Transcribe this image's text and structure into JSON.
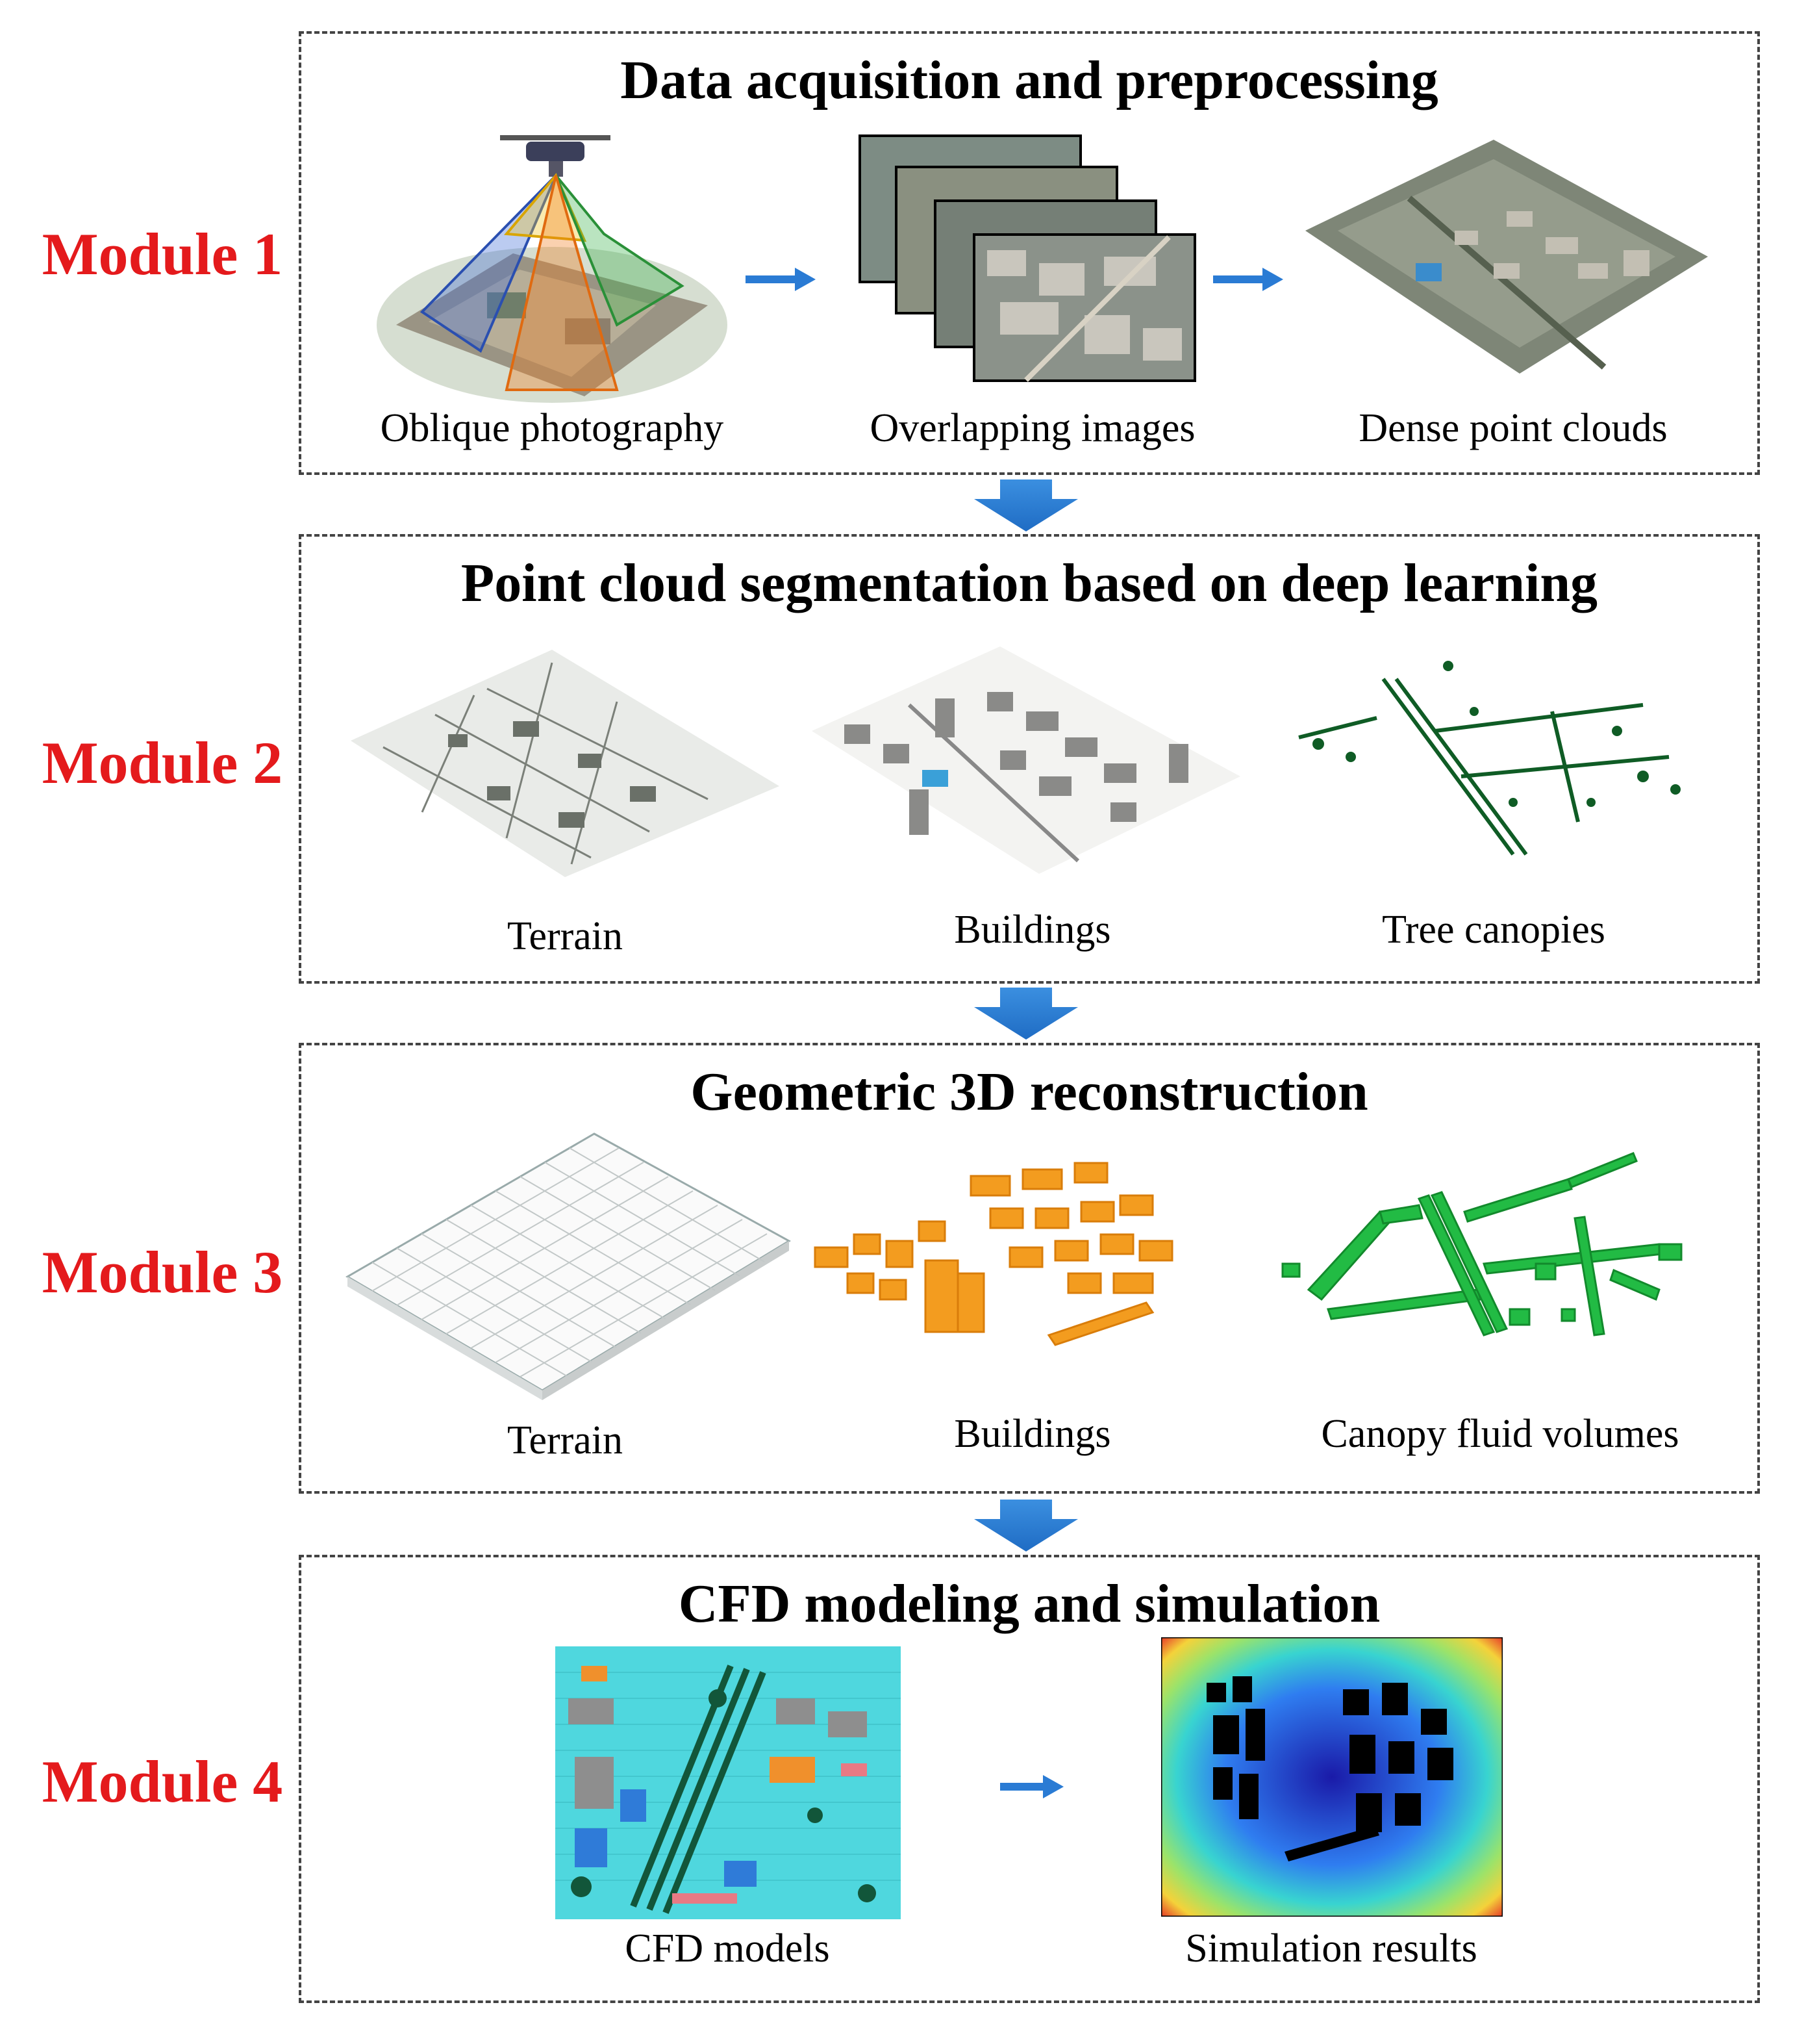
{
  "modules": [
    {
      "label": "Module 1",
      "title": "Data acquisition and preprocessing",
      "items": [
        {
          "caption": "Oblique photography",
          "icon": "drone-oblique-photography-icon"
        },
        {
          "caption": "Overlapping  images",
          "icon": "aerial-image-stack-icon"
        },
        {
          "caption": "Dense  point clouds",
          "icon": "point-cloud-icon"
        }
      ]
    },
    {
      "label": "Module 2",
      "title": "Point cloud segmentation based on deep learning",
      "items": [
        {
          "caption": "Terrain",
          "icon": "terrain-points-icon"
        },
        {
          "caption": "Buildings",
          "icon": "building-points-icon"
        },
        {
          "caption": "Tree  canopies",
          "icon": "tree-canopy-points-icon"
        }
      ]
    },
    {
      "label": "Module 3",
      "title": "Geometric 3D reconstruction",
      "items": [
        {
          "caption": "Terrain",
          "icon": "terrain-mesh-icon"
        },
        {
          "caption": "Buildings",
          "icon": "building-blocks-icon"
        },
        {
          "caption": "Canopy  fluid volumes",
          "icon": "canopy-volumes-icon"
        }
      ]
    },
    {
      "label": "Module 4",
      "title": "CFD modeling and simulation",
      "items": [
        {
          "caption": "CFD models",
          "icon": "cfd-model-icon"
        },
        {
          "caption": "Simulation results",
          "icon": "simulation-heatmap-icon"
        }
      ]
    }
  ],
  "colors": {
    "module_label": "#e41a1c",
    "arrow": "#2a7bd4",
    "building": "#f39c1f",
    "canopy": "#22bb44"
  }
}
